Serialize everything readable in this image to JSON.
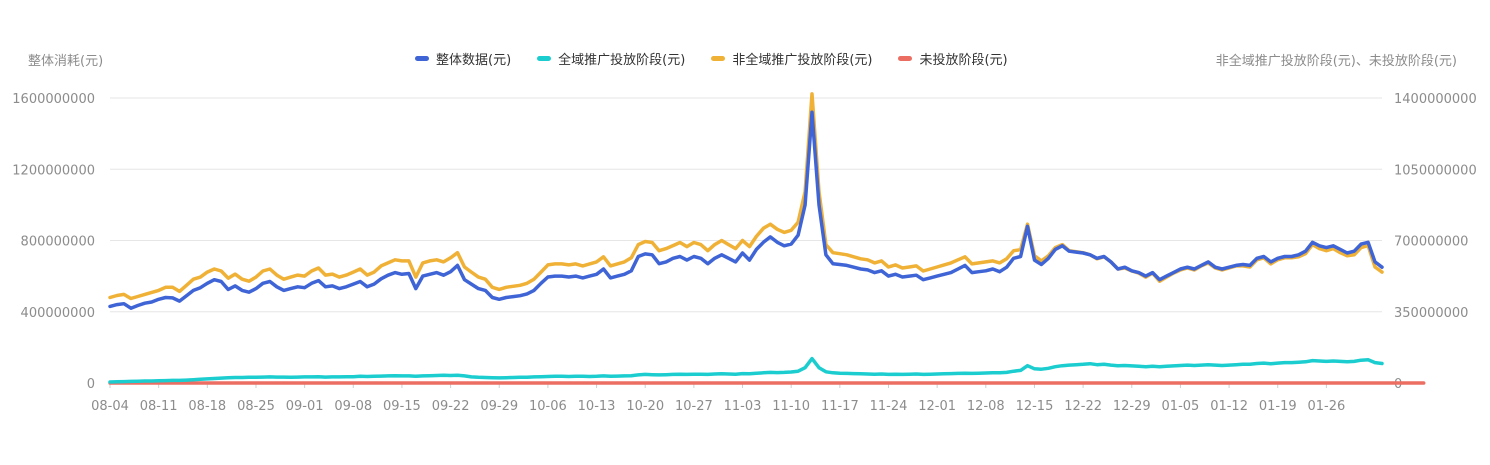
{
  "chart_data": {
    "type": "line",
    "y_left_label": "整体消耗(元)",
    "y_right_label": "非全域推广投放阶段(元)、未投放阶段(元)",
    "ylim_left": [
      0,
      1600000000
    ],
    "ylim_right": [
      0,
      1400000000
    ],
    "yticks_left": [
      "1600000000",
      "1200000000",
      "800000000",
      "400000000",
      "0"
    ],
    "yticks_right": [
      "1400000000",
      "1050000000",
      "700000000",
      "350000000",
      "0"
    ],
    "x_ticks": [
      "08-04",
      "08-11",
      "08-18",
      "08-25",
      "09-01",
      "09-08",
      "09-15",
      "09-22",
      "09-29",
      "10-06",
      "10-13",
      "10-20",
      "10-27",
      "11-03",
      "11-10",
      "11-17",
      "11-24",
      "12-01",
      "12-08",
      "12-15",
      "12-22",
      "12-29",
      "01-05",
      "01-12",
      "01-19",
      "01-26"
    ],
    "grid": true,
    "legend_position": "top",
    "series": [
      {
        "name": "整体数据(元)",
        "color": "#3f64d6",
        "axis": "left",
        "values": [
          430000000,
          440000000,
          445000000,
          420000000,
          435000000,
          448000000,
          455000000,
          470000000,
          480000000,
          478000000,
          460000000,
          490000000,
          520000000,
          535000000,
          560000000,
          580000000,
          570000000,
          525000000,
          545000000,
          520000000,
          510000000,
          530000000,
          560000000,
          570000000,
          540000000,
          520000000,
          530000000,
          540000000,
          535000000,
          560000000,
          575000000,
          540000000,
          545000000,
          530000000,
          540000000,
          555000000,
          570000000,
          540000000,
          555000000,
          585000000,
          605000000,
          620000000,
          610000000,
          615000000,
          530000000,
          600000000,
          610000000,
          620000000,
          605000000,
          625000000,
          660000000,
          580000000,
          555000000,
          530000000,
          520000000,
          480000000,
          470000000,
          480000000,
          485000000,
          490000000,
          500000000,
          520000000,
          560000000,
          595000000,
          600000000,
          600000000,
          595000000,
          600000000,
          590000000,
          600000000,
          610000000,
          640000000,
          590000000,
          600000000,
          610000000,
          630000000,
          710000000,
          725000000,
          720000000,
          670000000,
          680000000,
          700000000,
          710000000,
          690000000,
          710000000,
          700000000,
          670000000,
          700000000,
          720000000,
          700000000,
          680000000,
          730000000,
          690000000,
          750000000,
          790000000,
          820000000,
          790000000,
          770000000,
          780000000,
          830000000,
          1000000000,
          1520000000,
          1000000000,
          720000000,
          670000000,
          665000000,
          660000000,
          650000000,
          640000000,
          635000000,
          620000000,
          630000000,
          600000000,
          610000000,
          595000000,
          600000000,
          605000000,
          580000000,
          590000000,
          600000000,
          610000000,
          620000000,
          640000000,
          660000000,
          620000000,
          625000000,
          630000000,
          640000000,
          625000000,
          650000000,
          700000000,
          710000000,
          880000000,
          690000000,
          665000000,
          700000000,
          750000000,
          770000000,
          740000000,
          735000000,
          730000000,
          720000000,
          700000000,
          710000000,
          680000000,
          640000000,
          650000000,
          630000000,
          620000000,
          600000000,
          620000000,
          580000000,
          600000000,
          620000000,
          640000000,
          650000000,
          640000000,
          660000000,
          680000000,
          650000000,
          640000000,
          650000000,
          660000000,
          665000000,
          660000000,
          700000000,
          710000000,
          680000000,
          700000000,
          710000000,
          710000000,
          720000000,
          740000000,
          790000000,
          770000000,
          760000000,
          770000000,
          750000000,
          730000000,
          740000000,
          780000000,
          790000000,
          680000000,
          650000000
        ]
      },
      {
        "name": "全域推广投放阶段(元)",
        "color": "#1ccdd0",
        "axis": "right",
        "values": [
          5000000,
          6000000,
          7000000,
          8000000,
          9000000,
          10000000,
          10000000,
          11000000,
          12000000,
          13000000,
          13000000,
          14000000,
          16000000,
          18000000,
          20000000,
          22000000,
          24000000,
          26000000,
          27000000,
          27000000,
          28000000,
          28000000,
          29000000,
          30000000,
          29000000,
          29000000,
          28000000,
          29000000,
          30000000,
          30000000,
          31000000,
          29000000,
          30000000,
          30000000,
          31000000,
          31000000,
          33000000,
          32000000,
          33000000,
          34000000,
          35000000,
          36000000,
          35000000,
          35000000,
          33000000,
          35000000,
          36000000,
          37000000,
          38000000,
          37000000,
          38000000,
          35000000,
          30000000,
          28000000,
          27000000,
          26000000,
          25000000,
          26000000,
          27000000,
          28000000,
          28000000,
          30000000,
          31000000,
          32000000,
          33000000,
          33000000,
          32000000,
          33000000,
          33000000,
          32000000,
          33000000,
          35000000,
          33000000,
          34000000,
          35000000,
          36000000,
          40000000,
          42000000,
          41000000,
          40000000,
          41000000,
          42000000,
          43000000,
          42000000,
          43000000,
          43000000,
          42000000,
          44000000,
          45000000,
          44000000,
          43000000,
          46000000,
          45000000,
          48000000,
          50000000,
          52000000,
          51000000,
          52000000,
          54000000,
          58000000,
          75000000,
          120000000,
          75000000,
          55000000,
          50000000,
          48000000,
          47000000,
          46000000,
          45000000,
          44000000,
          43000000,
          44000000,
          42000000,
          43000000,
          42000000,
          43000000,
          44000000,
          42000000,
          43000000,
          44000000,
          45000000,
          46000000,
          47000000,
          48000000,
          47000000,
          48000000,
          49000000,
          50000000,
          50000000,
          52000000,
          58000000,
          62000000,
          85000000,
          70000000,
          68000000,
          72000000,
          80000000,
          85000000,
          88000000,
          90000000,
          92000000,
          95000000,
          90000000,
          92000000,
          88000000,
          85000000,
          86000000,
          84000000,
          82000000,
          80000000,
          82000000,
          80000000,
          82000000,
          84000000,
          86000000,
          88000000,
          86000000,
          88000000,
          90000000,
          88000000,
          86000000,
          88000000,
          90000000,
          92000000,
          92000000,
          96000000,
          98000000,
          95000000,
          98000000,
          100000000,
          100000000,
          102000000,
          104000000,
          110000000,
          108000000,
          106000000,
          108000000,
          106000000,
          104000000,
          106000000,
          112000000,
          114000000,
          100000000,
          96000000
        ]
      },
      {
        "name": "非全域推广投放阶段(元)",
        "color": "#f0b137",
        "axis": "right",
        "values": [
          420000000,
          430000000,
          435000000,
          415000000,
          425000000,
          435000000,
          445000000,
          455000000,
          470000000,
          470000000,
          450000000,
          480000000,
          510000000,
          520000000,
          545000000,
          560000000,
          550000000,
          515000000,
          535000000,
          510000000,
          500000000,
          520000000,
          550000000,
          560000000,
          530000000,
          510000000,
          520000000,
          530000000,
          525000000,
          550000000,
          565000000,
          530000000,
          535000000,
          520000000,
          530000000,
          545000000,
          560000000,
          530000000,
          545000000,
          575000000,
          590000000,
          605000000,
          600000000,
          600000000,
          520000000,
          590000000,
          600000000,
          605000000,
          595000000,
          615000000,
          640000000,
          570000000,
          545000000,
          520000000,
          510000000,
          470000000,
          460000000,
          470000000,
          475000000,
          480000000,
          490000000,
          510000000,
          545000000,
          580000000,
          585000000,
          585000000,
          580000000,
          585000000,
          575000000,
          585000000,
          595000000,
          620000000,
          575000000,
          585000000,
          595000000,
          615000000,
          680000000,
          695000000,
          690000000,
          650000000,
          660000000,
          675000000,
          690000000,
          670000000,
          690000000,
          680000000,
          650000000,
          680000000,
          700000000,
          680000000,
          660000000,
          700000000,
          670000000,
          720000000,
          760000000,
          780000000,
          755000000,
          740000000,
          750000000,
          790000000,
          940000000,
          1420000000,
          940000000,
          680000000,
          640000000,
          635000000,
          630000000,
          620000000,
          610000000,
          605000000,
          590000000,
          600000000,
          570000000,
          580000000,
          565000000,
          570000000,
          575000000,
          550000000,
          560000000,
          570000000,
          580000000,
          590000000,
          605000000,
          620000000,
          585000000,
          590000000,
          595000000,
          600000000,
          590000000,
          610000000,
          650000000,
          655000000,
          780000000,
          625000000,
          600000000,
          625000000,
          665000000,
          680000000,
          650000000,
          645000000,
          640000000,
          630000000,
          610000000,
          620000000,
          595000000,
          560000000,
          565000000,
          550000000,
          540000000,
          520000000,
          540000000,
          500000000,
          520000000,
          540000000,
          555000000,
          565000000,
          555000000,
          575000000,
          590000000,
          565000000,
          555000000,
          565000000,
          575000000,
          575000000,
          570000000,
          605000000,
          615000000,
          585000000,
          605000000,
          615000000,
          615000000,
          620000000,
          635000000,
          680000000,
          660000000,
          650000000,
          660000000,
          640000000,
          625000000,
          630000000,
          665000000,
          675000000,
          570000000,
          545000000
        ]
      },
      {
        "name": "未投放阶段(元)",
        "color": "#ec6e63",
        "axis": "right",
        "values": [
          0,
          0,
          0,
          0,
          0,
          0,
          0,
          0,
          0,
          0,
          0,
          0,
          0,
          0,
          0,
          0,
          0,
          0,
          0,
          0,
          0,
          0,
          0,
          0,
          0,
          0,
          0,
          0,
          0,
          0,
          0,
          0,
          0,
          0,
          0,
          0,
          0,
          0,
          0,
          0,
          0,
          0,
          0,
          0,
          0,
          0,
          0,
          0,
          0,
          0,
          0,
          0,
          0,
          0,
          0,
          0,
          0,
          0,
          0,
          0,
          0,
          0,
          0,
          0,
          0,
          0,
          0,
          0,
          0,
          0,
          0,
          0,
          0,
          0,
          0,
          0,
          0,
          0,
          0,
          0,
          0,
          0,
          0,
          0,
          0,
          0,
          0,
          0,
          0,
          0,
          0,
          0,
          0,
          0,
          0,
          0,
          0,
          0,
          0,
          0,
          0,
          0,
          0,
          0,
          0,
          0,
          0,
          0,
          0,
          0,
          0,
          0,
          0,
          0,
          0,
          0,
          0,
          0,
          0,
          0,
          0,
          0,
          0,
          0,
          0,
          0,
          0,
          0,
          0,
          0,
          0,
          0,
          0,
          0,
          0,
          0,
          0,
          0,
          0,
          0,
          0,
          0,
          0,
          0,
          0,
          0,
          0,
          0,
          0,
          0,
          0,
          0,
          0,
          0,
          0,
          0,
          0,
          0,
          0,
          0,
          0,
          0,
          0,
          0,
          0,
          0,
          0,
          0,
          0,
          0,
          0,
          0,
          0,
          0,
          0,
          0,
          0,
          0,
          0,
          0,
          0,
          0,
          0,
          0,
          0,
          0,
          0,
          0,
          0,
          0
        ]
      }
    ]
  }
}
